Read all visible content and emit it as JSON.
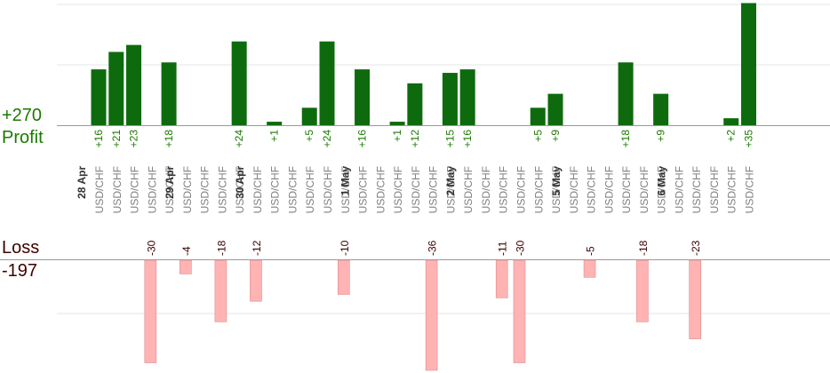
{
  "summary": {
    "profit_total": "+270",
    "profit_label": "Profit",
    "loss_label": "Loss",
    "loss_total": "-197"
  },
  "colors": {
    "profit_bar": "#0d6b0d",
    "profit_label": "#1a7a00",
    "loss_bar": "#ffb3b3",
    "loss_label": "#3d0000",
    "grid": "#e6e6e6",
    "axis": "#999999",
    "pair_label": "#7f7f7f",
    "date_label": "#333333"
  },
  "chart_data": {
    "type": "bar",
    "title": "",
    "xlabel": "",
    "ylabel": "",
    "grid": true,
    "ylim_profit": [
      0,
      35
    ],
    "ylim_loss": [
      -30,
      0
    ],
    "date_groups": [
      {
        "label": "28 Apr",
        "start": 0
      },
      {
        "label": "29 Apr",
        "start": 5
      },
      {
        "label": "30 Apr",
        "start": 9
      },
      {
        "label": "1 May",
        "start": 15
      },
      {
        "label": "2 May",
        "start": 21
      },
      {
        "label": "5 May",
        "start": 27
      },
      {
        "label": "6 May",
        "start": 33
      }
    ],
    "trades": [
      {
        "pair": "USD/CHF",
        "profit": 16,
        "loss": null
      },
      {
        "pair": "USD/CHF",
        "profit": 21,
        "loss": null
      },
      {
        "pair": "USD/CHF",
        "profit": 23,
        "loss": null
      },
      {
        "pair": "USD/CHF",
        "profit": null,
        "loss": -30
      },
      {
        "pair": "USD/CHF",
        "profit": 18,
        "loss": null
      },
      {
        "pair": "USD/CHF",
        "profit": null,
        "loss": -4
      },
      {
        "pair": "USD/CHF",
        "profit": null,
        "loss": null
      },
      {
        "pair": "USD/CHF",
        "profit": null,
        "loss": -18
      },
      {
        "pair": "USD/CHF",
        "profit": 24,
        "loss": null
      },
      {
        "pair": "USD/CHF",
        "profit": null,
        "loss": -12
      },
      {
        "pair": "USD/CHF",
        "profit": 1,
        "loss": null
      },
      {
        "pair": "USD/CHF",
        "profit": null,
        "loss": null
      },
      {
        "pair": "USD/CHF",
        "profit": 5,
        "loss": null
      },
      {
        "pair": "USD/CHF",
        "profit": 24,
        "loss": null
      },
      {
        "pair": "USD/CHF",
        "profit": null,
        "loss": -10
      },
      {
        "pair": "USD/CHF",
        "profit": 16,
        "loss": null
      },
      {
        "pair": "USD/CHF",
        "profit": null,
        "loss": null
      },
      {
        "pair": "USD/CHF",
        "profit": 1,
        "loss": null
      },
      {
        "pair": "USD/CHF",
        "profit": 12,
        "loss": null
      },
      {
        "pair": "USD/CHF",
        "profit": null,
        "loss": -36
      },
      {
        "pair": "USD/CHF",
        "profit": 15,
        "loss": null
      },
      {
        "pair": "USD/CHF",
        "profit": 16,
        "loss": null
      },
      {
        "pair": "USD/CHF",
        "profit": null,
        "loss": null
      },
      {
        "pair": "USD/CHF",
        "profit": null,
        "loss": -11
      },
      {
        "pair": "USD/CHF",
        "profit": null,
        "loss": -30
      },
      {
        "pair": "USD/CHF",
        "profit": 5,
        "loss": null
      },
      {
        "pair": "USD/CHF",
        "profit": 9,
        "loss": null
      },
      {
        "pair": "USD/CHF",
        "profit": null,
        "loss": null
      },
      {
        "pair": "USD/CHF",
        "profit": null,
        "loss": -5
      },
      {
        "pair": "USD/CHF",
        "profit": null,
        "loss": null
      },
      {
        "pair": "USD/CHF",
        "profit": 18,
        "loss": null
      },
      {
        "pair": "USD/CHF",
        "profit": null,
        "loss": -18
      },
      {
        "pair": "USD/CHF",
        "profit": 9,
        "loss": null
      },
      {
        "pair": "USD/CHF",
        "profit": null,
        "loss": null
      },
      {
        "pair": "USD/CHF",
        "profit": null,
        "loss": -23
      },
      {
        "pair": "USD/CHF",
        "profit": null,
        "loss": null
      },
      {
        "pair": "USD/CHF",
        "profit": 2,
        "loss": null
      },
      {
        "pair": "USD/CHF",
        "profit": 35,
        "loss": null
      }
    ]
  }
}
